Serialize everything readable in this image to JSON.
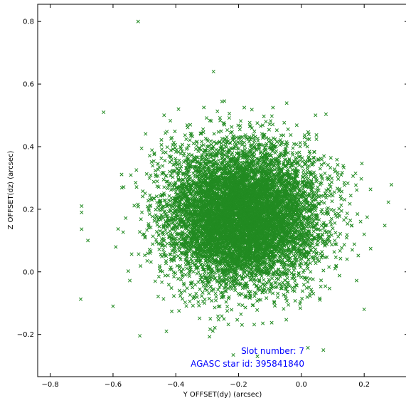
{
  "chart_data": {
    "type": "scatter",
    "xlabel": "Y OFFSET(dy) (arcsec)",
    "ylabel": "Z OFFSET(dz) (arcsec)",
    "xlim": [
      -0.84,
      0.34
    ],
    "ylim": [
      -0.335,
      0.855
    ],
    "x_ticks": [
      -0.8,
      -0.6,
      -0.4,
      -0.2,
      0.0,
      0.2
    ],
    "y_ticks": [
      -0.2,
      0.0,
      0.2,
      0.4,
      0.6,
      0.8
    ],
    "x_tick_labels": [
      "−0.8",
      "−0.6",
      "−0.4",
      "−0.2",
      "0.0",
      "0.2"
    ],
    "y_tick_labels": [
      "−0.2",
      "0.0",
      "0.2",
      "0.4",
      "0.6",
      "0.8"
    ],
    "grid": false,
    "marker": "x",
    "color": "#228B22",
    "annotation_color": "#0000ff",
    "cluster": {
      "center": [
        -0.19,
        0.18
      ],
      "spread": [
        0.12,
        0.11
      ],
      "count": 9000
    },
    "points": [
      {
        "x": -0.52,
        "y": 0.8
      },
      {
        "x": -0.7,
        "y": 0.21
      },
      {
        "x": -0.7,
        "y": 0.19
      },
      {
        "x": -0.68,
        "y": 0.1
      },
      {
        "x": -0.63,
        "y": 0.51
      },
      {
        "x": -0.28,
        "y": 0.64
      },
      {
        "x": 0.2,
        "y": 0.12
      },
      {
        "x": 0.2,
        "y": -0.12
      },
      {
        "x": 0.07,
        "y": -0.25
      },
      {
        "x": -0.6,
        "y": -0.11
      },
      {
        "x": -0.14,
        "y": -0.27
      },
      {
        "x": -0.43,
        "y": -0.19
      }
    ],
    "annotations": [
      "Slot number: 7",
      "AGASC star id: 395841840"
    ]
  }
}
